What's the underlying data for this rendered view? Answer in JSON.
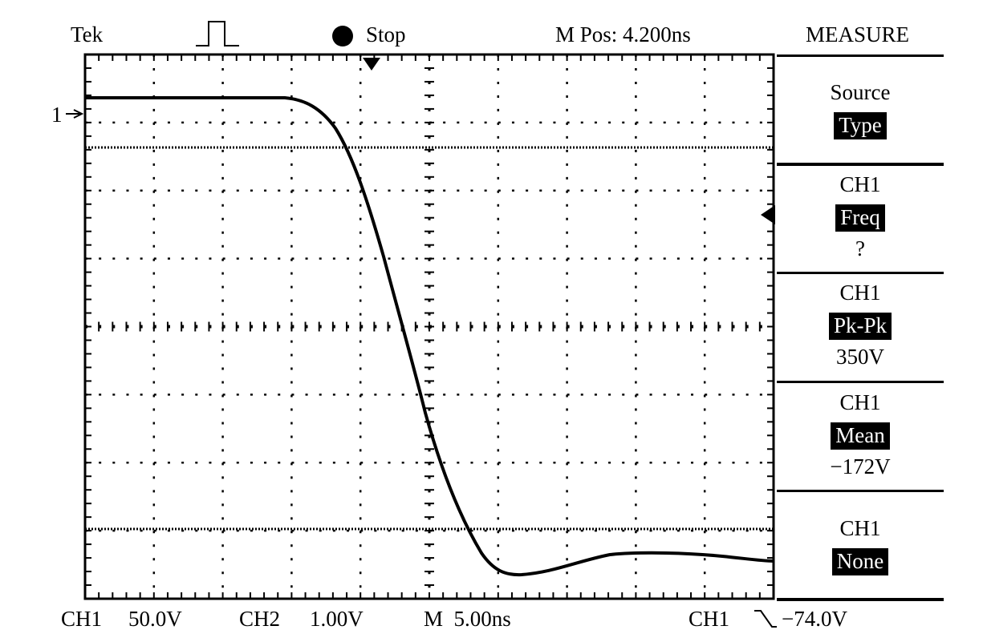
{
  "header": {
    "brand": "Tek",
    "acq_state": "Stop",
    "position": "M Pos: 4.200ns",
    "menu_title": "MEASURE",
    "trigger_icon": "rising-pulse-icon",
    "run_icon": "filled-circle-icon"
  },
  "channel_marker": "1",
  "menu": {
    "items": [
      {
        "line1": "Source",
        "line2": "Type",
        "line3": ""
      },
      {
        "line1": "CH1",
        "line2": "Freq",
        "line3": "?"
      },
      {
        "line1": "CH1",
        "line2": "Pk-Pk",
        "line3": "350V"
      },
      {
        "line1": "CH1",
        "line2": "Mean",
        "line3": "−172V"
      },
      {
        "line1": "CH1",
        "line2": "None",
        "line3": ""
      }
    ]
  },
  "footer": {
    "ch1_label": "CH1",
    "ch1_scale": "50.0V",
    "ch2_label": "CH2",
    "ch2_scale": "1.00V",
    "timebase": "M  5.00ns",
    "trigger_source": "CH1",
    "trigger_slope_icon": "falling-edge-icon",
    "trigger_level": "−74.0V"
  },
  "colors": {
    "trace": "#000000",
    "background": "#ffffff",
    "highlight": "#000000"
  }
}
